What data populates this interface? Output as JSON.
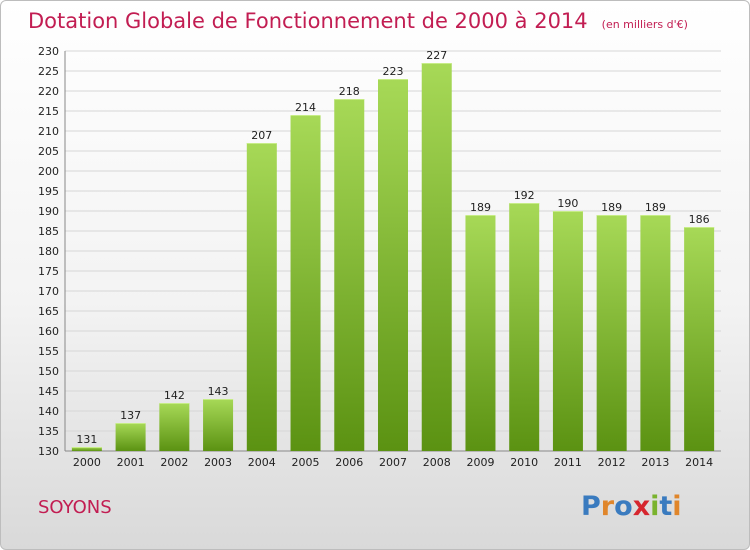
{
  "header": {
    "title": "Dotation Globale de Fonctionnement de 2000 à 2014",
    "subtitle": "(en milliers d'€)"
  },
  "footer": {
    "commune": "SOYONS",
    "logo": "Proxiti",
    "logo_colors": [
      "#3a7bbf",
      "#e0862b",
      "#3a7bbf",
      "#d6262e",
      "#7ab32e",
      "#3a7bbf",
      "#e0862b"
    ]
  },
  "colors": {
    "title": "#c21d52",
    "bar_light": "#a7d957",
    "bar_dark": "#5b9212"
  },
  "chart_data": {
    "type": "bar",
    "title": "Dotation Globale de Fonctionnement de 2000 à 2014",
    "subtitle": "(en milliers d'€)",
    "categories": [
      "2000",
      "2001",
      "2002",
      "2003",
      "2004",
      "2005",
      "2006",
      "2007",
      "2008",
      "2009",
      "2010",
      "2011",
      "2012",
      "2013",
      "2014"
    ],
    "values": [
      131,
      137,
      142,
      143,
      207,
      214,
      218,
      223,
      227,
      189,
      192,
      190,
      189,
      189,
      186
    ],
    "ylim": [
      130,
      230
    ],
    "yticks": [
      130,
      135,
      140,
      145,
      150,
      155,
      160,
      165,
      170,
      175,
      180,
      185,
      190,
      195,
      200,
      205,
      210,
      215,
      220,
      225,
      230
    ],
    "grid": true,
    "data_labels": true
  }
}
